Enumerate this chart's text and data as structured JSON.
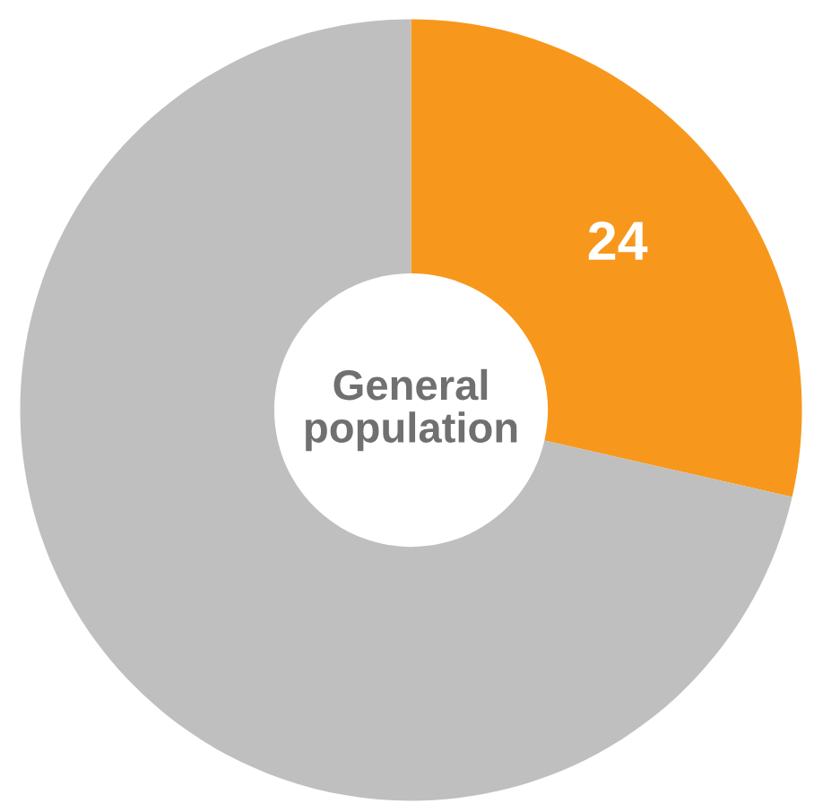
{
  "chart_data": {
    "type": "donut",
    "categories": [
      null,
      null
    ],
    "values": [
      24,
      60
    ],
    "colors": [
      "#f7981d",
      "#bfbfbf"
    ],
    "value_labels": [
      "24",
      null
    ],
    "annotations": [
      "General\npopulation"
    ]
  }
}
